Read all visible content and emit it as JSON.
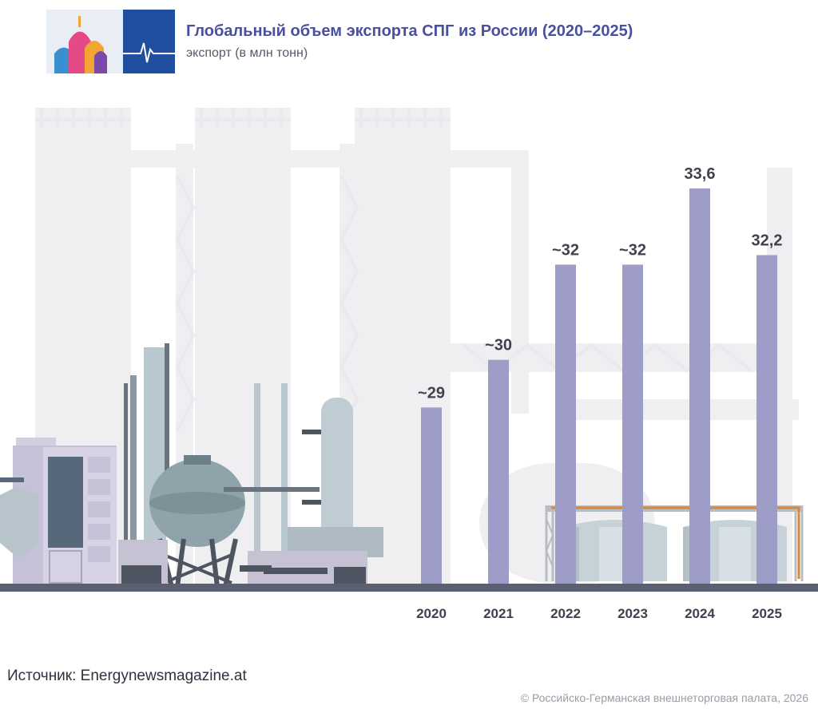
{
  "header": {
    "title": "Глобальный объем экспорта СПГ из России (2020–2025)",
    "subtitle": "экспорт (в млн тонн)"
  },
  "footer": {
    "source": "Источник: Energynewsmagazine.at",
    "copyright": "© Российско-Германская внешнеторговая палата, 2026"
  },
  "colors": {
    "bar": "#9e9dc8",
    "title": "#4a4f9e",
    "label": "#3f424e",
    "ground": "#5b6070",
    "background_silhouette": "#eeeef1"
  },
  "chart_data": {
    "type": "bar",
    "categories": [
      "2020",
      "2021",
      "2022",
      "2023",
      "2024",
      "2025"
    ],
    "values": [
      29,
      30,
      32,
      32,
      33.6,
      32.2
    ],
    "value_labels": [
      "~29",
      "~30",
      "~32",
      "~32",
      "33,6",
      "32,2"
    ],
    "title": "Глобальный объем экспорта СПГ из России (2020–2025)",
    "ylabel": "экспорт (в млн тонн)",
    "xlabel": "",
    "ylim": [
      25.3,
      34.8
    ],
    "grid": false,
    "legend": "none"
  }
}
